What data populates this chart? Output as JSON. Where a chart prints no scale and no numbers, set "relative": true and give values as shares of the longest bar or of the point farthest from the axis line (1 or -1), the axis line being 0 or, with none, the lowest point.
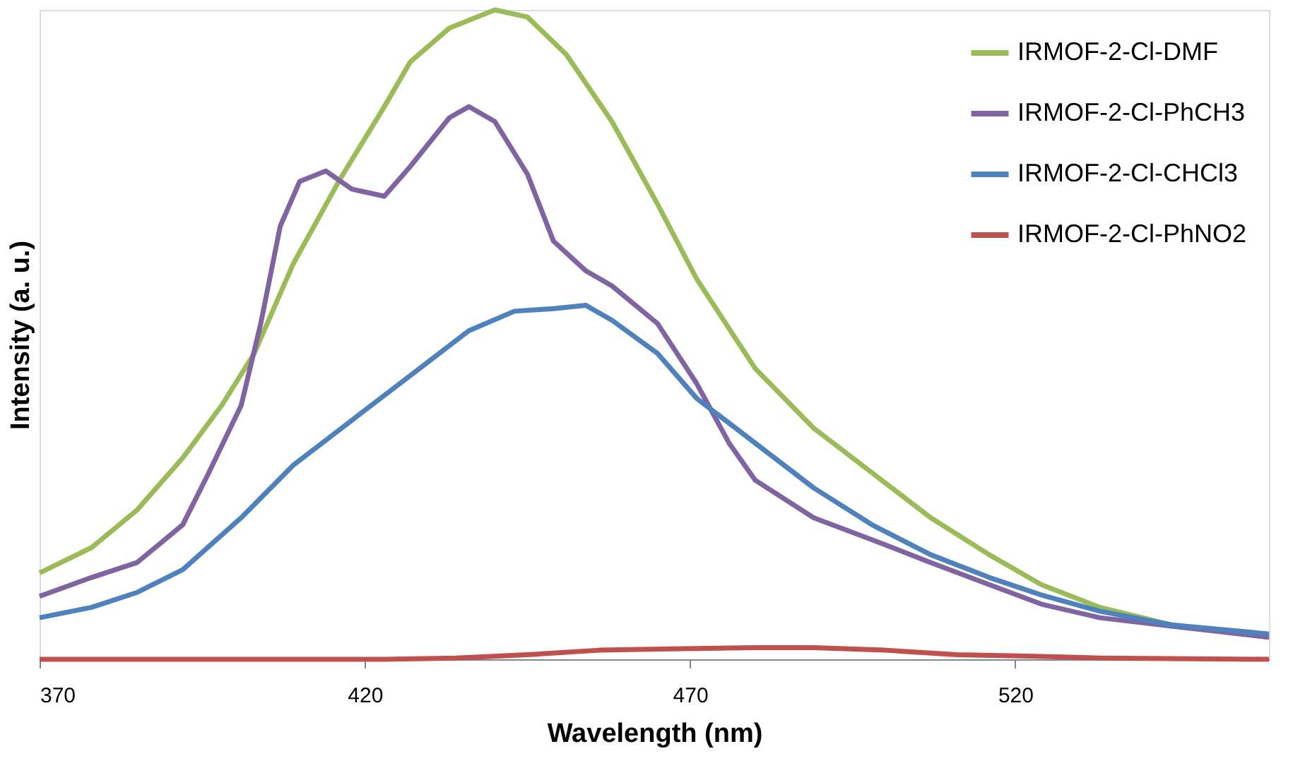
{
  "chart_data": {
    "type": "line",
    "relative": true,
    "xlabel": "Wavelength (nm)",
    "ylabel": "Intensity (a. u.)",
    "xlim": [
      370,
      559
    ],
    "xticks": [
      370,
      420,
      470,
      520
    ],
    "grid": false,
    "legend": "top right",
    "marker": "none",
    "line_style": "solid",
    "series": [
      {
        "name": "IRMOF-2-Cl-DMF",
        "color": "#9bbb59",
        "x": [
          370,
          378,
          385,
          392,
          398,
          403,
          409,
          416,
          423,
          427,
          433,
          440,
          445,
          451,
          458,
          465,
          471,
          480,
          489,
          498,
          507,
          516,
          524,
          533,
          544,
          559
        ],
        "values": [
          0.133,
          0.172,
          0.23,
          0.31,
          0.391,
          0.471,
          0.609,
          0.736,
          0.851,
          0.92,
          0.972,
          1,
          0.989,
          0.931,
          0.828,
          0.701,
          0.586,
          0.448,
          0.356,
          0.287,
          0.218,
          0.161,
          0.115,
          0.08,
          0.053,
          0.034
        ]
      },
      {
        "name": "IRMOF-2-Cl-PhCH3",
        "color": "#8064a2",
        "x": [
          370,
          378,
          385,
          392,
          396,
          401,
          404,
          407,
          410,
          414,
          418,
          423,
          427,
          433,
          436,
          440,
          445,
          449,
          454,
          458,
          465,
          471,
          476,
          480,
          489,
          498,
          507,
          516,
          524,
          533,
          544,
          559
        ],
        "values": [
          0.097,
          0.126,
          0.149,
          0.207,
          0.287,
          0.391,
          0.517,
          0.667,
          0.736,
          0.752,
          0.724,
          0.713,
          0.759,
          0.834,
          0.851,
          0.828,
          0.747,
          0.644,
          0.598,
          0.575,
          0.517,
          0.425,
          0.333,
          0.276,
          0.218,
          0.184,
          0.149,
          0.115,
          0.085,
          0.064,
          0.051,
          0.034
        ]
      },
      {
        "name": "IRMOF-2-Cl-CHCl3",
        "color": "#4f81bd",
        "x": [
          370,
          378,
          385,
          392,
          401,
          409,
          418,
          427,
          436,
          443,
          449,
          454,
          458,
          465,
          471,
          480,
          489,
          498,
          507,
          516,
          524,
          533,
          544,
          559
        ],
        "values": [
          0.064,
          0.08,
          0.103,
          0.138,
          0.218,
          0.299,
          0.368,
          0.437,
          0.506,
          0.536,
          0.54,
          0.545,
          0.522,
          0.471,
          0.402,
          0.333,
          0.264,
          0.207,
          0.161,
          0.126,
          0.099,
          0.074,
          0.053,
          0.039
        ]
      },
      {
        "name": "IRMOF-2-Cl-PhNO2",
        "color": "#c0504d",
        "x": [
          370,
          423,
          434,
          445,
          456,
          467,
          480,
          489,
          500,
          511,
          522,
          533,
          559
        ],
        "values": [
          0,
          0,
          0.002,
          0.007,
          0.014,
          0.016,
          0.018,
          0.018,
          0.014,
          0.007,
          0.005,
          0.002,
          0
        ]
      }
    ]
  }
}
